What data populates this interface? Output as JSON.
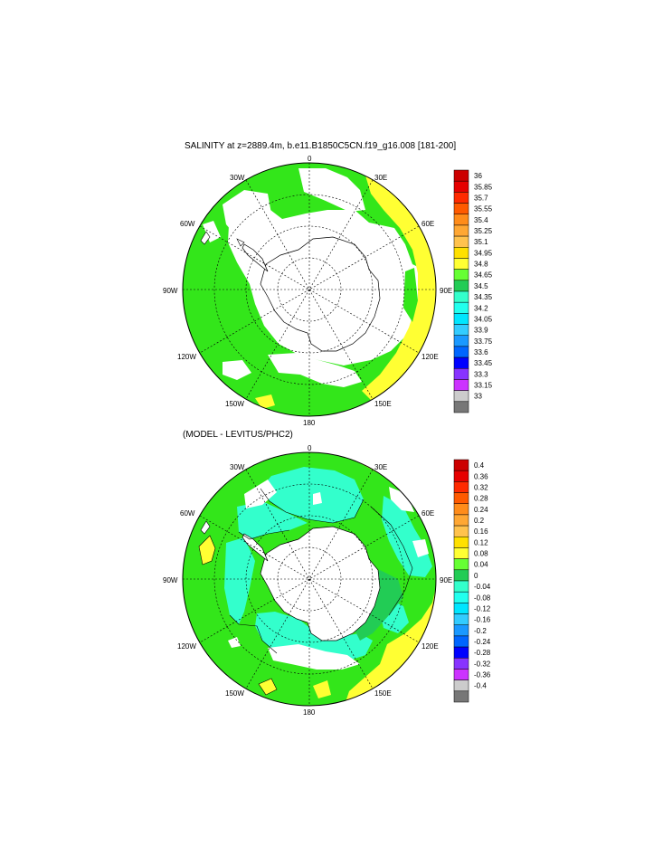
{
  "panels": [
    {
      "title": "SALINITY at z=2889.4m, b.e11.B1850C5CN.f19_g16.008 [181-200]",
      "lon_labels": [
        "0",
        "30E",
        "60E",
        "90E",
        "120E",
        "150E",
        "180",
        "150W",
        "120W",
        "90W",
        "60W",
        "30W"
      ],
      "colorbar": {
        "levels": [
          "36",
          "35.85",
          "35.7",
          "35.55",
          "35.4",
          "35.25",
          "35.1",
          "34.95",
          "34.8",
          "34.65",
          "34.5",
          "34.35",
          "34.2",
          "34.05",
          "33.9",
          "33.75",
          "33.6",
          "33.45",
          "33.3",
          "33.15",
          "33"
        ],
        "colors": [
          "#cc0000",
          "#e60000",
          "#ff2a00",
          "#ff5a00",
          "#ff8c1a",
          "#ffa733",
          "#ffc24d",
          "#ffe000",
          "#ffff33",
          "#66ff33",
          "#22cc55",
          "#33ffcc",
          "#22ffee",
          "#00e6ff",
          "#33ccff",
          "#1a99ff",
          "#0066ff",
          "#0000ff",
          "#8833ff",
          "#cc33ff",
          "#cccccc",
          "#777777"
        ]
      }
    },
    {
      "title": "(MODEL - LEVITUS/PHC2)",
      "lon_labels": [
        "0",
        "30E",
        "60E",
        "90E",
        "120E",
        "150E",
        "180",
        "150W",
        "120W",
        "90W",
        "60W",
        "30W"
      ],
      "colorbar": {
        "levels": [
          "0.4",
          "0.36",
          "0.32",
          "0.28",
          "0.24",
          "0.2",
          "0.16",
          "0.12",
          "0.08",
          "0.04",
          "0",
          "-0.04",
          "-0.08",
          "-0.12",
          "-0.16",
          "-0.2",
          "-0.24",
          "-0.28",
          "-0.32",
          "-0.36",
          "-0.4"
        ],
        "colors": [
          "#cc0000",
          "#e60000",
          "#ff2a00",
          "#ff5a00",
          "#ff8c1a",
          "#ffa733",
          "#ffc24d",
          "#ffe000",
          "#ffff33",
          "#66ff33",
          "#22cc55",
          "#33ffcc",
          "#22ffee",
          "#00e6ff",
          "#33ccff",
          "#1a99ff",
          "#0066ff",
          "#0000ff",
          "#8833ff",
          "#cc33ff",
          "#cccccc",
          "#777777"
        ]
      }
    }
  ]
}
